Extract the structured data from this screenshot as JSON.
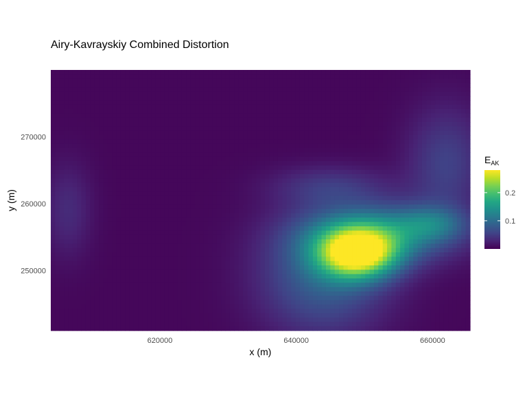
{
  "chart_data": {
    "type": "heatmap",
    "title": "Airy-Kavrayskiy Combined Distortion",
    "xlabel": "x (m)",
    "ylabel": "y (m)",
    "xlim": [
      604000,
      665500
    ],
    "ylim": [
      241000,
      280000
    ],
    "x_ticks": [
      620000,
      640000,
      660000
    ],
    "x_tick_labels": [
      "620000",
      "640000",
      "660000"
    ],
    "y_ticks": [
      250000,
      260000,
      270000
    ],
    "y_tick_labels": [
      "250000",
      "260000",
      "270000"
    ],
    "colorscale": "viridis",
    "legend": {
      "title_main": "E",
      "title_sub": "AK",
      "range": [
        0.0,
        0.28
      ],
      "ticks": [
        0.1,
        0.2
      ],
      "tick_labels": [
        "0.1",
        "0.2"
      ],
      "placement": "right"
    },
    "field_components": [
      {
        "cx": 649000,
        "cy": 252500,
        "amp": 0.25,
        "sx": 4000,
        "sy": 2600
      },
      {
        "cx": 652000,
        "cy": 255500,
        "amp": 0.12,
        "sx": 7500,
        "sy": 3000
      },
      {
        "cx": 644000,
        "cy": 249000,
        "amp": 0.08,
        "sx": 6500,
        "sy": 6000
      },
      {
        "cx": 660000,
        "cy": 257000,
        "amp": 0.06,
        "sx": 3500,
        "sy": 1800
      },
      {
        "cx": 662000,
        "cy": 266000,
        "amp": 0.05,
        "sx": 4000,
        "sy": 6000
      },
      {
        "cx": 645000,
        "cy": 262500,
        "amp": 0.04,
        "sx": 6000,
        "sy": 2200
      },
      {
        "cx": 606500,
        "cy": 259000,
        "amp": 0.03,
        "sx": 2500,
        "sy": 5000
      }
    ],
    "field_baseline": 0.005
  }
}
